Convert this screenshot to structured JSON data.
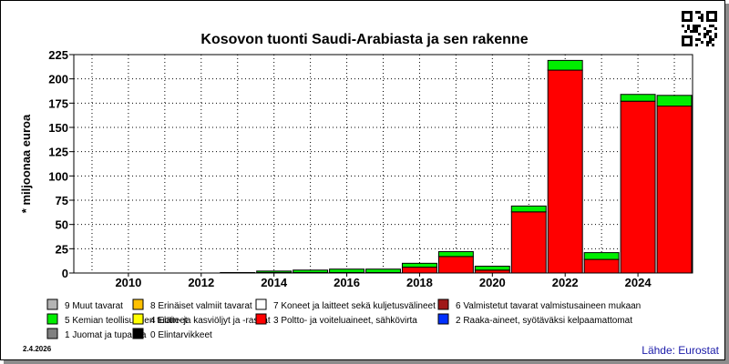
{
  "chart_data": {
    "type": "bar",
    "stacked": true,
    "title": "Kosovon tuonti Saudi-Arabiasta ja sen rakenne",
    "ylabel": "* miljoonaa euroa",
    "xlabel": "",
    "ylim": [
      0,
      225
    ],
    "yticks": [
      0,
      25,
      50,
      75,
      100,
      125,
      150,
      175,
      200,
      225
    ],
    "x_tick_labels": [
      "2010",
      "2012",
      "2014",
      "2016",
      "2018",
      "2020",
      "2022",
      "2024"
    ],
    "categories": [
      "2009",
      "2010",
      "2011",
      "2012",
      "2013",
      "2014",
      "2015",
      "2016",
      "2017",
      "2018",
      "2019",
      "2020",
      "2021",
      "2022",
      "2023",
      "2024",
      "2025"
    ],
    "series": [
      {
        "name": "3 Poltto- ja voiteluaineet, sähkövirta",
        "color": "#ff0000",
        "values": [
          0,
          0,
          0,
          0,
          0,
          0.5,
          0.5,
          0.5,
          0.5,
          6,
          17,
          3,
          63,
          209,
          14,
          177,
          172
        ]
      },
      {
        "name": "5 Kemian teollisuuden tuotteet",
        "color": "#00ee00",
        "values": [
          0,
          0,
          0,
          0,
          0.5,
          1.5,
          2.5,
          3.5,
          3.5,
          4,
          5,
          4,
          6,
          10,
          7,
          7,
          11
        ]
      }
    ],
    "legend": [
      {
        "label": "9 Muut tavarat",
        "color": "#b4b4b4"
      },
      {
        "label": "8 Erinäiset valmiit tavarat",
        "color": "#ffc000"
      },
      {
        "label": "7 Koneet ja laitteet sekä kuljetusvälineet",
        "color": "#ffffff"
      },
      {
        "label": "6 Valmistetut tavarat valmistusaineen mukaan",
        "color": "#a01818"
      },
      {
        "label": "5 Kemian teollisuuden tuotteet",
        "color": "#00ee00"
      },
      {
        "label": "4 Eläin- ja kasviöljyt ja -rasvat",
        "color": "#ffff00"
      },
      {
        "label": "3 Poltto- ja voiteluaineet, sähkövirta",
        "color": "#ff0000"
      },
      {
        "label": "2 Raaka-aineet, syötäväksi kelpaamattomat",
        "color": "#0030ff"
      },
      {
        "label": "1 Juomat ja tupakka",
        "color": "#808080"
      },
      {
        "label": "0 Elintarvikkeet",
        "color": "#000000"
      }
    ],
    "grid": true,
    "legend_placement": "bottom"
  },
  "footer": {
    "date": "2.4.2026",
    "source": "Lähde: Eurostat"
  }
}
